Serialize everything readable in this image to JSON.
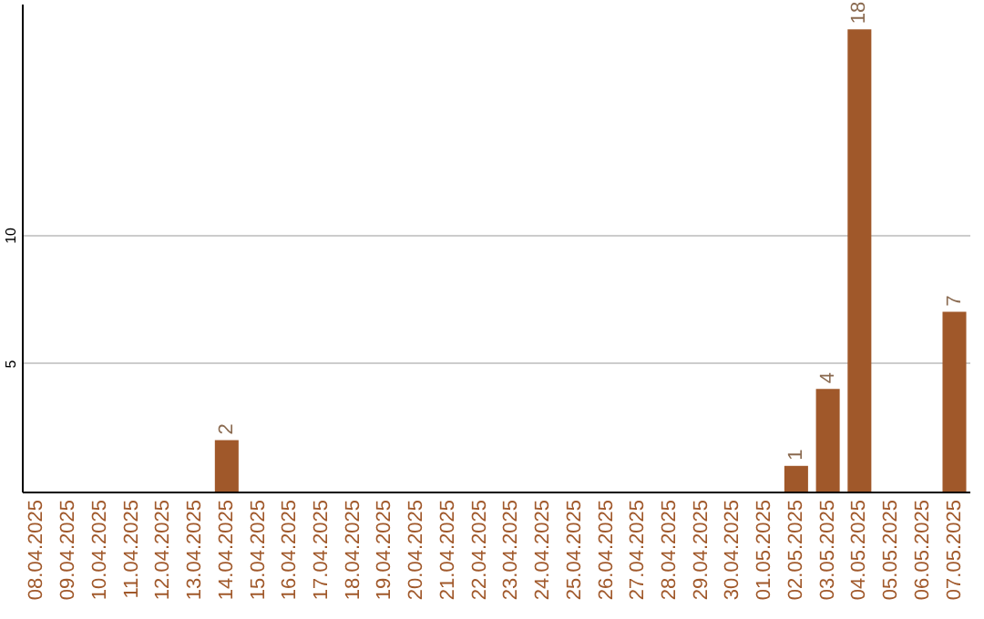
{
  "chart_data": {
    "type": "bar",
    "categories": [
      "08.04.2025",
      "09.04.2025",
      "10.04.2025",
      "11.04.2025",
      "12.04.2025",
      "13.04.2025",
      "14.04.2025",
      "15.04.2025",
      "16.04.2025",
      "17.04.2025",
      "18.04.2025",
      "19.04.2025",
      "20.04.2025",
      "21.04.2025",
      "22.04.2025",
      "23.04.2025",
      "24.04.2025",
      "25.04.2025",
      "26.04.2025",
      "27.04.2025",
      "28.04.2025",
      "29.04.2025",
      "30.04.2025",
      "01.05.2025",
      "02.05.2025",
      "03.05.2025",
      "04.05.2025",
      "05.05.2025",
      "06.05.2025",
      "07.05.2025"
    ],
    "values": [
      0,
      0,
      0,
      0,
      0,
      0,
      2,
      0,
      0,
      0,
      0,
      0,
      0,
      0,
      0,
      0,
      0,
      0,
      0,
      0,
      0,
      0,
      0,
      0,
      1,
      4,
      18,
      0,
      0,
      7
    ],
    "value_labels": [
      null,
      null,
      null,
      null,
      null,
      null,
      "2",
      null,
      null,
      null,
      null,
      null,
      null,
      null,
      null,
      null,
      null,
      null,
      null,
      null,
      null,
      null,
      null,
      null,
      "1",
      "4",
      "18",
      null,
      null,
      "7"
    ],
    "color": "#a0582a",
    "ylim": [
      0,
      19
    ],
    "yticks": [
      5,
      10
    ],
    "grid": "y"
  }
}
